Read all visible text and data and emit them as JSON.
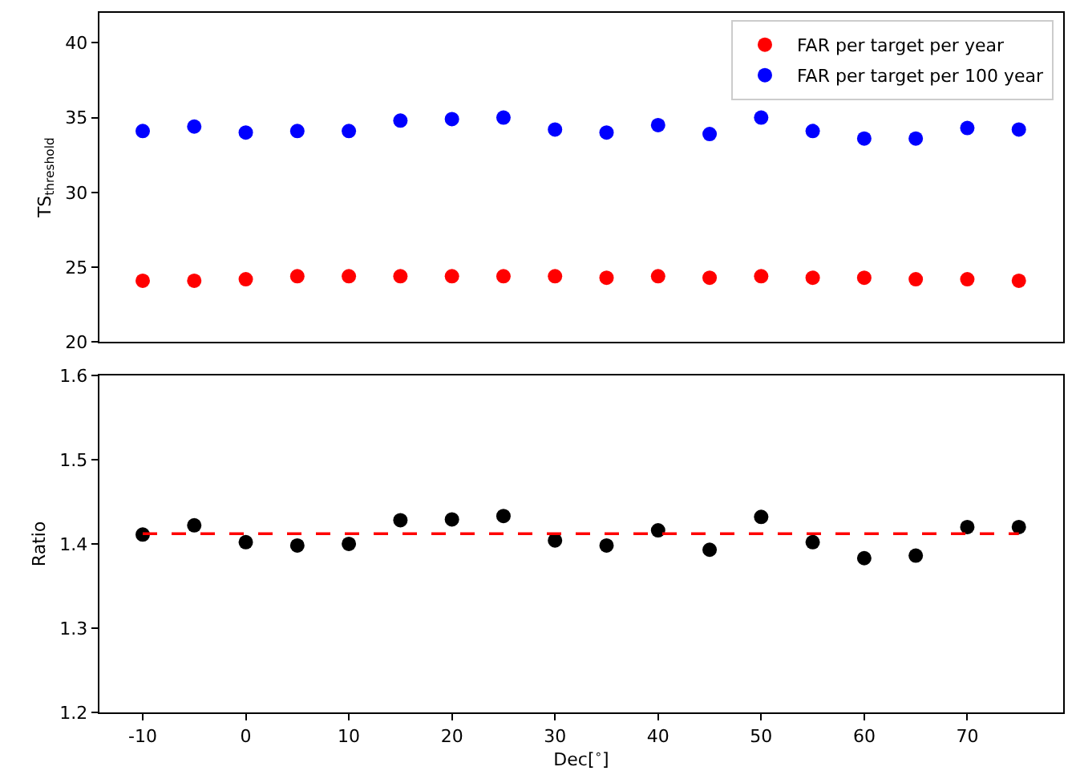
{
  "chart_data": [
    {
      "type": "scatter",
      "ylabel": "TS$_{threshold}$",
      "x": [
        -10,
        -5,
        0,
        5,
        10,
        15,
        20,
        25,
        30,
        35,
        40,
        45,
        50,
        55,
        60,
        65,
        70,
        75
      ],
      "xlim": [
        -14.2,
        79.3
      ],
      "ylim": [
        20,
        42
      ],
      "yticks": [
        20,
        25,
        30,
        35,
        40
      ],
      "tick_labels": "y",
      "legend": "top right",
      "series": [
        {
          "name": "FAR per target per year",
          "color": "#ff0000",
          "values": [
            24.1,
            24.1,
            24.2,
            24.4,
            24.4,
            24.4,
            24.4,
            24.4,
            24.4,
            24.3,
            24.4,
            24.3,
            24.4,
            24.3,
            24.3,
            24.2,
            24.2,
            24.1
          ]
        },
        {
          "name": "FAR per target per 100 year",
          "color": "#0000ff",
          "values": [
            34.1,
            34.4,
            34.0,
            34.1,
            34.1,
            34.8,
            34.9,
            35.0,
            34.2,
            34.0,
            34.5,
            33.9,
            35.0,
            34.1,
            33.6,
            33.6,
            34.3,
            34.2
          ]
        }
      ]
    },
    {
      "type": "scatter",
      "xlabel": "Dec[$^{∘}$]",
      "ylabel": "Ratio",
      "x": [
        -10,
        -5,
        0,
        5,
        10,
        15,
        20,
        25,
        30,
        35,
        40,
        45,
        50,
        55,
        60,
        65,
        70,
        75
      ],
      "xlim": [
        -14.2,
        79.3
      ],
      "xticks": [
        -10,
        0,
        10,
        20,
        30,
        40,
        50,
        60,
        70
      ],
      "ylim": [
        1.2,
        1.6
      ],
      "yticks": [
        1.2,
        1.3,
        1.4,
        1.5,
        1.6
      ],
      "legend": false,
      "series": [
        {
          "color": "#000000",
          "values": [
            1.411,
            1.422,
            1.402,
            1.398,
            1.4,
            1.428,
            1.429,
            1.433,
            1.404,
            1.398,
            1.416,
            1.393,
            1.432,
            1.402,
            1.383,
            1.386,
            1.42,
            1.42
          ]
        },
        {
          "type": "line",
          "line_style": "dashed",
          "marker": "none",
          "color": "#ff0000",
          "x": [
            -10,
            75
          ],
          "values": [
            1.412,
            1.412
          ]
        }
      ]
    }
  ]
}
